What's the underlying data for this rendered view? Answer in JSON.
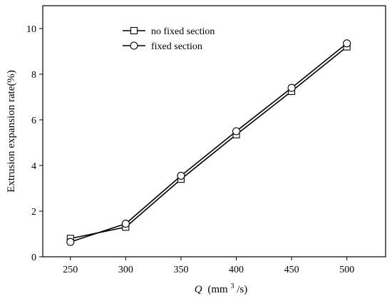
{
  "chart_data": {
    "type": "line",
    "title": "",
    "xlabel": {
      "symbol": "Q",
      "unit_open": "(mm",
      "unit_sup": "3",
      "unit_close": "/s)"
    },
    "ylabel": "Extrusion expansion rate(%)",
    "x": [
      250,
      300,
      350,
      400,
      450,
      500
    ],
    "xlim": [
      225,
      535
    ],
    "ylim": [
      0,
      11
    ],
    "xticks": [
      250,
      300,
      350,
      400,
      450,
      500
    ],
    "yticks": [
      0,
      2,
      4,
      6,
      8,
      10
    ],
    "grid": false,
    "legend_position": "top-center",
    "series": [
      {
        "name": "no fixed section",
        "marker": "square",
        "color": "#000000",
        "values": [
          0.8,
          1.3,
          3.4,
          5.35,
          7.25,
          9.2
        ]
      },
      {
        "name": "fixed section",
        "marker": "circle",
        "color": "#000000",
        "values": [
          0.65,
          1.45,
          3.55,
          5.5,
          7.4,
          9.35
        ]
      }
    ]
  }
}
